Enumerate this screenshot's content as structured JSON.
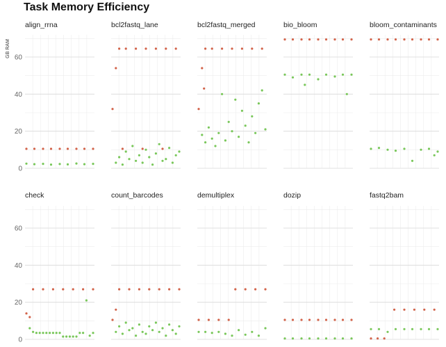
{
  "chart_data": {
    "type": "scatter",
    "title": "Task Memory Efficiency",
    "ylabel": "GB RAM",
    "xlabel": "",
    "ylim": [
      0,
      72
    ],
    "yticks": [
      0,
      20,
      40,
      60
    ],
    "grid": true,
    "legend": "none",
    "layout": {
      "rows": 2,
      "cols": 5
    },
    "series_colors": {
      "allocated": "#d2634a",
      "used": "#79c75a"
    },
    "facets": [
      {
        "name": "align_rrna",
        "allocated": {
          "x": [
            0,
            0.12,
            0.25,
            0.37,
            0.5,
            0.62,
            0.75,
            0.87,
            1.0
          ],
          "y": [
            10.5,
            10.5,
            10.5,
            10.5,
            10.5,
            10.5,
            10.5,
            10.5,
            10.5
          ]
        },
        "used": {
          "x": [
            0,
            0.12,
            0.25,
            0.37,
            0.5,
            0.62,
            0.75,
            0.87,
            1.0
          ],
          "y": [
            2.5,
            2.2,
            2.4,
            2.0,
            2.3,
            2.1,
            2.6,
            2.2,
            2.4
          ]
        }
      },
      {
        "name": "bcl2fastq_lane",
        "allocated": {
          "x": [
            0,
            0.05,
            0.1,
            0.2,
            0.35,
            0.5,
            0.65,
            0.8,
            0.95,
            0.15,
            0.45,
            0.75
          ],
          "y": [
            32,
            54,
            64.5,
            64.5,
            64.5,
            64.5,
            64.5,
            64.5,
            64.5,
            10.5,
            10.5,
            10.5
          ]
        },
        "used": {
          "x": [
            0.05,
            0.1,
            0.15,
            0.2,
            0.25,
            0.3,
            0.35,
            0.4,
            0.45,
            0.5,
            0.55,
            0.6,
            0.65,
            0.7,
            0.75,
            0.8,
            0.85,
            0.9,
            0.95,
            1.0
          ],
          "y": [
            3,
            6,
            2,
            9,
            5,
            12,
            4,
            7,
            3,
            10,
            6,
            2,
            8,
            13,
            4,
            5,
            11,
            3,
            7,
            9
          ]
        }
      },
      {
        "name": "bcl2fastq_merged",
        "allocated": {
          "x": [
            0,
            0.05,
            0.08,
            0.1,
            0.2,
            0.35,
            0.5,
            0.65,
            0.8,
            0.95
          ],
          "y": [
            32,
            54,
            43,
            64.5,
            64.5,
            64.5,
            64.5,
            64.5,
            64.5,
            64.5
          ]
        },
        "used": {
          "x": [
            0.05,
            0.1,
            0.15,
            0.2,
            0.25,
            0.3,
            0.35,
            0.4,
            0.45,
            0.5,
            0.55,
            0.6,
            0.65,
            0.7,
            0.75,
            0.8,
            0.85,
            0.9,
            0.95,
            1.0
          ],
          "y": [
            18,
            14,
            22,
            16,
            12,
            19,
            40,
            15,
            25,
            20,
            37,
            17,
            31,
            23,
            14,
            28,
            19,
            35,
            42,
            21
          ]
        }
      },
      {
        "name": "bio_bloom",
        "allocated": {
          "x": [
            0,
            0.12,
            0.25,
            0.37,
            0.5,
            0.62,
            0.75,
            0.87,
            1.0
          ],
          "y": [
            69.5,
            69.5,
            69.5,
            69.5,
            69.5,
            69.5,
            69.5,
            69.5,
            69.5
          ]
        },
        "used": {
          "x": [
            0,
            0.12,
            0.25,
            0.3,
            0.37,
            0.5,
            0.62,
            0.75,
            0.87,
            0.93,
            1.0
          ],
          "y": [
            50.5,
            49,
            50.5,
            45,
            50.5,
            48,
            50.5,
            49.5,
            50.5,
            40,
            50.5
          ]
        }
      },
      {
        "name": "bloom_contaminants",
        "allocated": {
          "x": [
            0,
            0.12,
            0.25,
            0.37,
            0.5,
            0.62,
            0.75,
            0.87,
            1.0
          ],
          "y": [
            69.5,
            69.5,
            69.5,
            69.5,
            69.5,
            69.5,
            69.5,
            69.5,
            69.5
          ]
        },
        "used": {
          "x": [
            0,
            0.12,
            0.25,
            0.37,
            0.5,
            0.62,
            0.75,
            0.87,
            0.95,
            1.0
          ],
          "y": [
            10.5,
            11,
            10,
            9.5,
            10.5,
            4,
            10,
            10.5,
            7,
            9
          ]
        }
      },
      {
        "name": "check",
        "allocated": {
          "x": [
            0,
            0.05,
            0.1,
            0.25,
            0.4,
            0.55,
            0.7,
            0.85,
            1.0
          ],
          "y": [
            14,
            12,
            27,
            27,
            27,
            27,
            27,
            27,
            27
          ]
        },
        "used": {
          "x": [
            0.05,
            0.1,
            0.15,
            0.2,
            0.25,
            0.3,
            0.35,
            0.4,
            0.45,
            0.5,
            0.55,
            0.6,
            0.65,
            0.7,
            0.75,
            0.8,
            0.85,
            0.9,
            0.95,
            1.0
          ],
          "y": [
            6,
            4,
            3.5,
            3.5,
            3.5,
            3.5,
            3.5,
            3.5,
            3.5,
            3.5,
            1.5,
            1.5,
            1.5,
            1.5,
            1.5,
            3.5,
            3.5,
            21,
            2,
            3.5
          ]
        }
      },
      {
        "name": "count_barcodes",
        "allocated": {
          "x": [
            0,
            0.05,
            0.1,
            0.25,
            0.4,
            0.55,
            0.7,
            0.85,
            1.0
          ],
          "y": [
            10.5,
            16,
            27,
            27,
            27,
            27,
            27,
            27,
            27
          ]
        },
        "used": {
          "x": [
            0.05,
            0.1,
            0.15,
            0.2,
            0.25,
            0.3,
            0.35,
            0.4,
            0.45,
            0.5,
            0.55,
            0.6,
            0.65,
            0.7,
            0.75,
            0.8,
            0.85,
            0.9,
            0.95,
            1.0
          ],
          "y": [
            4,
            7,
            3,
            9,
            5,
            6,
            2,
            8,
            4,
            3,
            7,
            5,
            9,
            4,
            6,
            2,
            8,
            5,
            3,
            7
          ]
        }
      },
      {
        "name": "demultiplex",
        "allocated": {
          "x": [
            0,
            0.15,
            0.3,
            0.45,
            0.55,
            0.7,
            0.85,
            1.0
          ],
          "y": [
            10.5,
            10.5,
            10.5,
            10.5,
            27,
            27,
            27,
            27
          ]
        },
        "used": {
          "x": [
            0,
            0.1,
            0.2,
            0.3,
            0.4,
            0.5,
            0.6,
            0.7,
            0.8,
            0.9,
            1.0
          ],
          "y": [
            4,
            4,
            3.5,
            4,
            3,
            2,
            5,
            2.5,
            4,
            2,
            6
          ]
        }
      },
      {
        "name": "dozip",
        "allocated": {
          "x": [
            0,
            0.12,
            0.25,
            0.37,
            0.5,
            0.62,
            0.75,
            0.87,
            1.0
          ],
          "y": [
            10.5,
            10.5,
            10.5,
            10.5,
            10.5,
            10.5,
            10.5,
            10.5,
            10.5
          ]
        },
        "used": {
          "x": [
            0,
            0.12,
            0.25,
            0.37,
            0.5,
            0.62,
            0.75,
            0.87,
            1.0
          ],
          "y": [
            0.5,
            0.5,
            0.5,
            0.5,
            0.5,
            0.5,
            0.5,
            0.5,
            0.5
          ]
        }
      },
      {
        "name": "fastq2bam",
        "allocated": {
          "x": [
            0,
            0.1,
            0.2,
            0.35,
            0.5,
            0.65,
            0.8,
            0.95
          ],
          "y": [
            0.5,
            0.5,
            0.5,
            16,
            16,
            16,
            16,
            16
          ]
        },
        "used": {
          "x": [
            0,
            0.12,
            0.25,
            0.37,
            0.5,
            0.62,
            0.75,
            0.87,
            1.0
          ],
          "y": [
            5.5,
            5.5,
            4,
            5.5,
            5.5,
            5.5,
            5.5,
            5.5,
            5.5
          ]
        }
      }
    ]
  }
}
